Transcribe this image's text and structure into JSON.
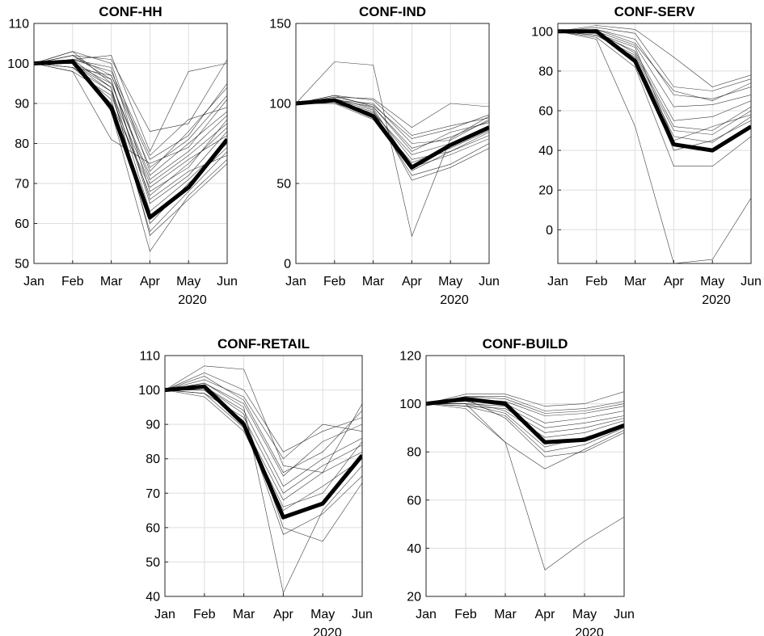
{
  "chart_data": [
    {
      "type": "line",
      "title": "CONF-HH",
      "categories": [
        "Jan",
        "Feb",
        "Mar",
        "Apr",
        "May",
        "Jun"
      ],
      "year_label": "2020",
      "ylim": [
        50,
        110
      ],
      "yticks": [
        50,
        60,
        70,
        80,
        90,
        100,
        110
      ],
      "grid": true,
      "highlight": [
        100,
        100.5,
        89,
        61.5,
        69,
        81
      ],
      "countries": [
        [
          100,
          102,
          101,
          83,
          85,
          101
        ],
        [
          100,
          101,
          102,
          78,
          98,
          100
        ],
        [
          100,
          98,
          81,
          75,
          79,
          91
        ],
        [
          100,
          103,
          95,
          72,
          80,
          88
        ],
        [
          100,
          100,
          93,
          70,
          77,
          85
        ],
        [
          100,
          99,
          97,
          76,
          82,
          95
        ],
        [
          100,
          101,
          99,
          68,
          74,
          86
        ],
        [
          100,
          102,
          96,
          65,
          72,
          83
        ],
        [
          100,
          100,
          94,
          63,
          71,
          80
        ],
        [
          100,
          99,
          91,
          58,
          68,
          78
        ],
        [
          100,
          101,
          88,
          53,
          67,
          76
        ],
        [
          100,
          102,
          97,
          74,
          81,
          92
        ],
        [
          100,
          100,
          95,
          71,
          78,
          87
        ],
        [
          100,
          98,
          92,
          67,
          75,
          84
        ],
        [
          100,
          101,
          98,
          77,
          86,
          89
        ],
        [
          100,
          100,
          90,
          69,
          76,
          82
        ],
        [
          100,
          99,
          93,
          60,
          70,
          79
        ],
        [
          100,
          103,
          100,
          73,
          83,
          94
        ],
        [
          100,
          100,
          96,
          66,
          73,
          77
        ],
        [
          100,
          101,
          94,
          57,
          66,
          75
        ]
      ]
    },
    {
      "type": "line",
      "title": "CONF-IND",
      "categories": [
        "Jan",
        "Feb",
        "Mar",
        "Apr",
        "May",
        "Jun"
      ],
      "year_label": "2020",
      "ylim": [
        0,
        150
      ],
      "yticks": [
        0,
        50,
        100,
        150
      ],
      "grid": true,
      "highlight": [
        100,
        102,
        92,
        60,
        74,
        85
      ],
      "countries": [
        [
          100,
          126,
          124,
          17,
          78,
          92
        ],
        [
          100,
          104,
          103,
          85,
          100,
          98
        ],
        [
          100,
          102,
          100,
          75,
          77,
          90
        ],
        [
          100,
          105,
          98,
          70,
          82,
          88
        ],
        [
          100,
          101,
          95,
          65,
          70,
          80
        ],
        [
          100,
          103,
          97,
          60,
          68,
          78
        ],
        [
          100,
          100,
          93,
          55,
          62,
          75
        ],
        [
          100,
          102,
          96,
          52,
          60,
          72
        ],
        [
          100,
          104,
          99,
          78,
          84,
          93
        ],
        [
          100,
          101,
          94,
          68,
          75,
          86
        ],
        [
          100,
          103,
          91,
          63,
          72,
          83
        ],
        [
          100,
          102,
          98,
          72,
          79,
          89
        ],
        [
          100,
          105,
          102,
          80,
          86,
          91
        ],
        [
          100,
          100,
          90,
          58,
          70,
          82
        ]
      ]
    },
    {
      "type": "line",
      "title": "CONF-SERV",
      "categories": [
        "Jan",
        "Feb",
        "Mar",
        "Apr",
        "May",
        "Jun"
      ],
      "year_label": "2020",
      "ylim": [
        -17,
        104
      ],
      "yticks": [
        0,
        20,
        40,
        60,
        80,
        100
      ],
      "grid": true,
      "highlight": [
        100,
        100,
        85,
        43,
        40,
        52
      ],
      "countries": [
        [
          100,
          103,
          101,
          87,
          72,
          78
        ],
        [
          100,
          102,
          99,
          72,
          70,
          76
        ],
        [
          100,
          101,
          96,
          68,
          66,
          72
        ],
        [
          100,
          100,
          93,
          62,
          63,
          68
        ],
        [
          100,
          99,
          90,
          55,
          57,
          65
        ],
        [
          100,
          98,
          88,
          50,
          48,
          60
        ],
        [
          100,
          99,
          92,
          45,
          52,
          58
        ],
        [
          100,
          100,
          86,
          40,
          45,
          55
        ],
        [
          100,
          97,
          82,
          32,
          32,
          47
        ],
        [
          100,
          96,
          52,
          -17,
          -15,
          16
        ],
        [
          100,
          101,
          94,
          70,
          65,
          74
        ],
        [
          100,
          100,
          89,
          52,
          50,
          62
        ],
        [
          100,
          98,
          87,
          47,
          44,
          57
        ]
      ]
    },
    {
      "type": "line",
      "title": "CONF-RETAIL",
      "categories": [
        "Jan",
        "Feb",
        "Mar",
        "Apr",
        "May",
        "Jun"
      ],
      "year_label": "2020",
      "ylim": [
        40,
        110
      ],
      "yticks": [
        40,
        50,
        60,
        70,
        80,
        90,
        100,
        110
      ],
      "grid": true,
      "highlight": [
        100,
        101,
        90,
        63,
        67,
        81
      ],
      "countries": [
        [
          100,
          107,
          106,
          78,
          76,
          96
        ],
        [
          100,
          105,
          100,
          82,
          88,
          92
        ],
        [
          100,
          103,
          98,
          80,
          90,
          88
        ],
        [
          100,
          102,
          96,
          75,
          85,
          90
        ],
        [
          100,
          101,
          94,
          72,
          80,
          86
        ],
        [
          100,
          99,
          92,
          70,
          78,
          84
        ],
        [
          100,
          100,
          90,
          68,
          76,
          82
        ],
        [
          100,
          98,
          88,
          65,
          72,
          80
        ],
        [
          100,
          101,
          93,
          60,
          56,
          73
        ],
        [
          100,
          100,
          91,
          58,
          64,
          75
        ],
        [
          100,
          102,
          95,
          41,
          65,
          78
        ],
        [
          100,
          104,
          97,
          76,
          82,
          94
        ],
        [
          100,
          99,
          89,
          66,
          70,
          85
        ]
      ]
    },
    {
      "type": "line",
      "title": "CONF-BUILD",
      "categories": [
        "Jan",
        "Feb",
        "Mar",
        "Apr",
        "May",
        "Jun"
      ],
      "year_label": "2020",
      "ylim": [
        20,
        120
      ],
      "yticks": [
        20,
        40,
        60,
        80,
        100,
        120
      ],
      "grid": true,
      "highlight": [
        100,
        102,
        100,
        84,
        85,
        91
      ],
      "countries": [
        [
          100,
          104,
          104,
          99,
          100,
          105
        ],
        [
          100,
          103,
          103,
          97,
          98,
          101
        ],
        [
          100,
          102,
          101,
          95,
          96,
          99
        ],
        [
          100,
          101,
          100,
          92,
          94,
          97
        ],
        [
          100,
          100,
          99,
          90,
          92,
          95
        ],
        [
          100,
          99,
          98,
          88,
          90,
          94
        ],
        [
          100,
          101,
          97,
          86,
          88,
          93
        ],
        [
          100,
          100,
          96,
          82,
          86,
          91
        ],
        [
          100,
          99,
          95,
          80,
          83,
          90
        ],
        [
          100,
          102,
          94,
          78,
          80,
          88
        ],
        [
          100,
          100,
          84,
          73,
          81,
          89
        ],
        [
          100,
          98,
          84,
          31,
          43,
          53
        ],
        [
          100,
          103,
          102,
          96,
          97,
          100
        ]
      ]
    }
  ]
}
